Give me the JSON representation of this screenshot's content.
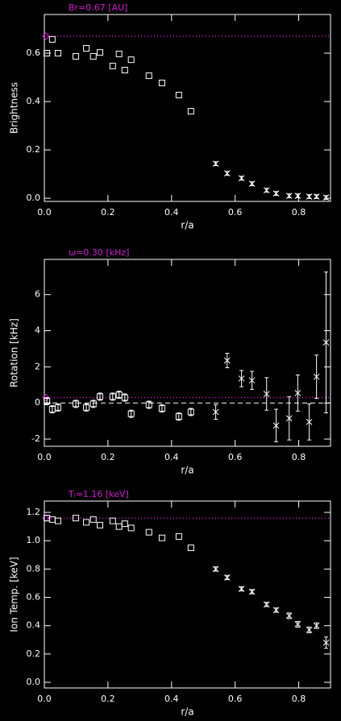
{
  "chart_data": [
    {
      "type": "scatter",
      "title": "Br=0.67 [AU]",
      "xlabel": "r/a",
      "ylabel": "Brightness",
      "xlim": [
        0,
        0.9
      ],
      "xticks": [
        {
          "value": 0,
          "label": "0.0"
        },
        {
          "value": 0.2,
          "label": "0.2"
        },
        {
          "value": 0.4,
          "label": "0.4"
        },
        {
          "value": 0.6,
          "label": "0.6"
        },
        {
          "value": 0.8,
          "label": "0.8"
        }
      ],
      "ylim": [
        -0.013,
        0.76
      ],
      "yticks": [
        {
          "value": 0,
          "label": "0.0"
        },
        {
          "value": 0.2,
          "label": "0.2"
        },
        {
          "value": 0.4,
          "label": "0.4"
        },
        {
          "value": 0.6,
          "label": "0.6"
        }
      ],
      "reference": 0.67,
      "reference_color": "#d020d0",
      "zero_line": false,
      "series": [
        {
          "marker": "square",
          "color": "#ffffff",
          "x": [
            0.008,
            0.025,
            0.043,
            0.099,
            0.132,
            0.154,
            0.175,
            0.215,
            0.235,
            0.253,
            0.273,
            0.329,
            0.37,
            0.423,
            0.461
          ],
          "values": [
            0.6,
            0.657,
            0.6,
            0.587,
            0.62,
            0.587,
            0.603,
            0.547,
            0.597,
            0.53,
            0.573,
            0.507,
            0.477,
            0.427,
            0.36
          ]
        },
        {
          "marker": "cross",
          "color": "#ffffff",
          "x": [
            0.539,
            0.575,
            0.62,
            0.653,
            0.699,
            0.729,
            0.77,
            0.797,
            0.833,
            0.856,
            0.886
          ],
          "values": [
            0.143,
            0.103,
            0.083,
            0.06,
            0.033,
            0.02,
            0.01,
            0.01,
            0.007,
            0.007,
            0.003
          ],
          "errors": [
            0.008,
            0.008,
            0.008,
            0.008,
            0.008,
            0.008,
            0.008,
            0.008,
            0.008,
            0.008,
            0.008
          ]
        }
      ]
    },
    {
      "type": "scatter",
      "title": "ω=0.30 [kHz]",
      "xlabel": "r/a",
      "ylabel": "Rotation [kHz]",
      "xlim": [
        0,
        0.9
      ],
      "xticks": [
        {
          "value": 0,
          "label": "0.0"
        },
        {
          "value": 0.2,
          "label": "0.2"
        },
        {
          "value": 0.4,
          "label": "0.4"
        },
        {
          "value": 0.6,
          "label": "0.6"
        },
        {
          "value": 0.8,
          "label": "0.8"
        }
      ],
      "ylim": [
        -2.4,
        7.95
      ],
      "yticks": [
        -2,
        0,
        2,
        4,
        6
      ],
      "reference": 0.3,
      "reference_color": "#d020d0",
      "zero_line": true,
      "series": [
        {
          "marker": "square",
          "color": "#ffffff",
          "x": [
            0.008,
            0.025,
            0.043,
            0.099,
            0.132,
            0.154,
            0.175,
            0.215,
            0.235,
            0.253,
            0.273,
            0.329,
            0.37,
            0.423,
            0.461
          ],
          "values": [
            0.1,
            -0.35,
            -0.25,
            -0.05,
            -0.25,
            -0.05,
            0.35,
            0.35,
            0.45,
            0.3,
            -0.6,
            -0.1,
            -0.3,
            -0.75,
            -0.5
          ],
          "errors": [
            0.2,
            0.2,
            0.2,
            0.2,
            0.2,
            0.2,
            0.2,
            0.2,
            0.2,
            0.2,
            0.2,
            0.2,
            0.2,
            0.2,
            0.2
          ]
        },
        {
          "marker": "cross",
          "color": "#ffffff",
          "x": [
            0.539,
            0.575,
            0.62,
            0.653,
            0.699,
            0.729,
            0.77,
            0.797,
            0.833,
            0.856,
            0.886
          ],
          "values": [
            -0.5,
            2.35,
            1.35,
            1.25,
            0.5,
            -1.25,
            -0.85,
            0.55,
            -1.05,
            1.45,
            3.35
          ],
          "errors": [
            0.4,
            0.4,
            0.45,
            0.5,
            0.9,
            0.9,
            1.2,
            1.0,
            1.0,
            1.2,
            3.9
          ]
        }
      ]
    },
    {
      "type": "scatter",
      "title": "Tᵢ=1.16 [keV]",
      "xlabel": "r/a",
      "ylabel": "Ion Temp. [keV]",
      "xlim": [
        0,
        0.9
      ],
      "xticks": [
        {
          "value": 0,
          "label": "0.0"
        },
        {
          "value": 0.2,
          "label": "0.2"
        },
        {
          "value": 0.4,
          "label": "0.4"
        },
        {
          "value": 0.6,
          "label": "0.6"
        },
        {
          "value": 0.8,
          "label": "0.8"
        }
      ],
      "ylim": [
        -0.04,
        1.28
      ],
      "yticks": [
        {
          "value": 0,
          "label": "0.0"
        },
        {
          "value": 0.2,
          "label": "0.2"
        },
        {
          "value": 0.4,
          "label": "0.4"
        },
        {
          "value": 0.6,
          "label": "0.6"
        },
        {
          "value": 0.8,
          "label": "0.8"
        },
        {
          "value": 1,
          "label": "1.0"
        },
        {
          "value": 1.2,
          "label": "1.2"
        }
      ],
      "reference": 1.16,
      "reference_color": "#d020d0",
      "zero_line": false,
      "series": [
        {
          "marker": "square",
          "color": "#ffffff",
          "x": [
            0.008,
            0.025,
            0.043,
            0.099,
            0.132,
            0.154,
            0.175,
            0.215,
            0.235,
            0.253,
            0.273,
            0.329,
            0.37,
            0.423,
            0.461
          ],
          "values": [
            1.16,
            1.15,
            1.14,
            1.16,
            1.13,
            1.15,
            1.11,
            1.14,
            1.1,
            1.12,
            1.09,
            1.06,
            1.02,
            1.03,
            0.95
          ]
        },
        {
          "marker": "cross",
          "color": "#ffffff",
          "x": [
            0.539,
            0.575,
            0.62,
            0.653,
            0.699,
            0.729,
            0.77,
            0.797,
            0.833,
            0.856,
            0.886
          ],
          "values": [
            0.8,
            0.74,
            0.66,
            0.64,
            0.55,
            0.51,
            0.47,
            0.41,
            0.37,
            0.4,
            0.28
          ],
          "errors": [
            0.015,
            0.015,
            0.015,
            0.015,
            0.015,
            0.015,
            0.02,
            0.02,
            0.02,
            0.02,
            0.04
          ]
        }
      ]
    }
  ]
}
